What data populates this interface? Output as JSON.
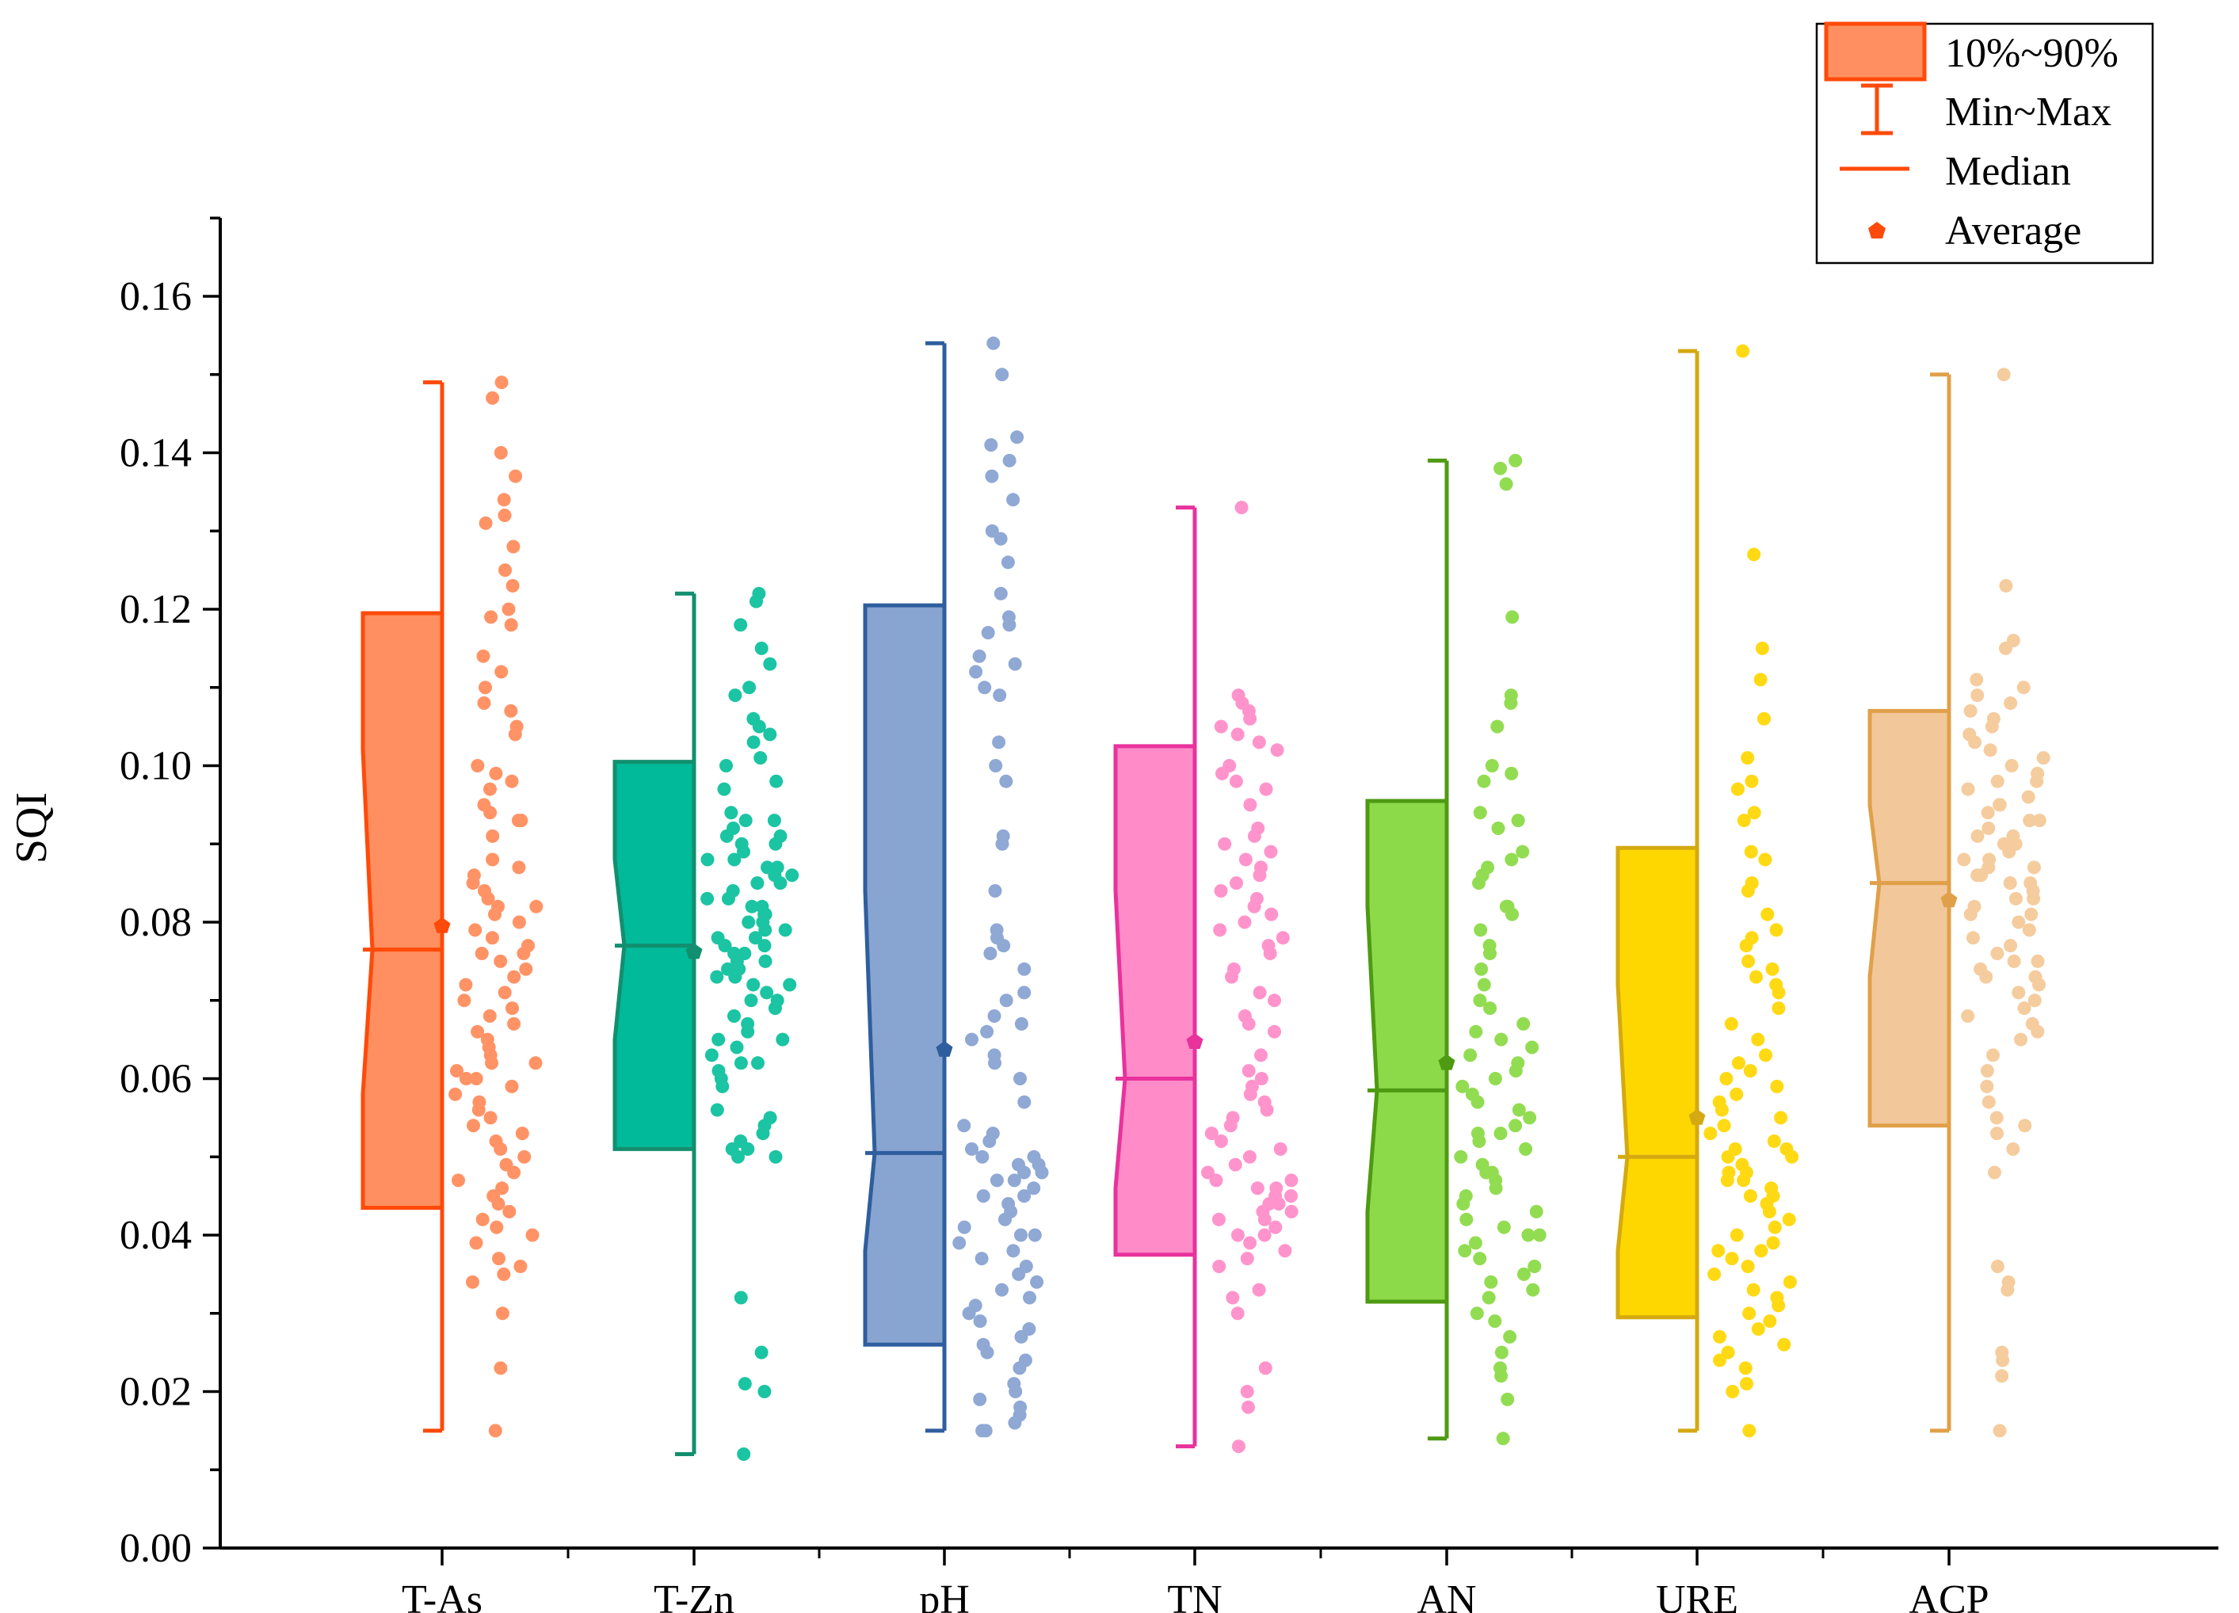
{
  "chart_data": {
    "type": "box-with-points",
    "xlabel": "",
    "ylabel": "SQI",
    "ylim": [
      0.0,
      0.17
    ],
    "yticks": [
      0.0,
      0.02,
      0.04,
      0.06,
      0.08,
      0.1,
      0.12,
      0.14,
      0.16
    ],
    "ytick_labels": [
      "0.00",
      "0.02",
      "0.04",
      "0.06",
      "0.08",
      "0.10",
      "0.12",
      "0.14",
      "0.16"
    ],
    "categories": [
      "T-As",
      "T-Zn",
      "pH",
      "TN",
      "AN",
      "URE",
      "ACP"
    ],
    "legend": {
      "position": "top-right",
      "entries": [
        {
          "key": "box",
          "label": "10%~90%"
        },
        {
          "key": "whisker",
          "label": "Min~Max"
        },
        {
          "key": "median",
          "label": "Median"
        },
        {
          "key": "mean",
          "label": "Average"
        }
      ],
      "color": "#FF4A0A",
      "fill": "#FF8F60"
    },
    "series": [
      {
        "name": "T-As",
        "edge": "#FF4A0A",
        "fill": "#FF8F60",
        "point": "#FF9366",
        "min": 0.015,
        "p10": 0.0435,
        "median": 0.0765,
        "p90": 0.1195,
        "max": 0.149,
        "mean": 0.0795,
        "notch_low": 0.058,
        "notch_high": 0.102,
        "points": [
          0.149,
          0.147,
          0.14,
          0.137,
          0.134,
          0.132,
          0.131,
          0.128,
          0.125,
          0.123,
          0.12,
          0.119,
          0.118,
          0.114,
          0.112,
          0.11,
          0.108,
          0.107,
          0.105,
          0.104,
          0.1,
          0.099,
          0.098,
          0.097,
          0.095,
          0.094,
          0.093,
          0.093,
          0.091,
          0.088,
          0.087,
          0.086,
          0.085,
          0.084,
          0.083,
          0.082,
          0.082,
          0.081,
          0.08,
          0.079,
          0.078,
          0.077,
          0.076,
          0.076,
          0.075,
          0.074,
          0.073,
          0.072,
          0.071,
          0.07,
          0.069,
          0.068,
          0.067,
          0.066,
          0.065,
          0.064,
          0.063,
          0.062,
          0.062,
          0.061,
          0.06,
          0.06,
          0.059,
          0.058,
          0.057,
          0.056,
          0.055,
          0.054,
          0.053,
          0.052,
          0.051,
          0.05,
          0.049,
          0.048,
          0.047,
          0.046,
          0.045,
          0.044,
          0.043,
          0.042,
          0.041,
          0.04,
          0.039,
          0.037,
          0.036,
          0.035,
          0.034,
          0.03,
          0.023,
          0.015
        ]
      },
      {
        "name": "T-Zn",
        "edge": "#128F6E",
        "fill": "#00BA9A",
        "point": "#1BC4A2",
        "min": 0.012,
        "p10": 0.051,
        "median": 0.077,
        "p90": 0.1005,
        "max": 0.122,
        "mean": 0.0762,
        "notch_low": 0.065,
        "notch_high": 0.088,
        "points": [
          0.122,
          0.121,
          0.118,
          0.115,
          0.113,
          0.11,
          0.109,
          0.106,
          0.105,
          0.104,
          0.103,
          0.101,
          0.1,
          0.098,
          0.097,
          0.094,
          0.093,
          0.093,
          0.092,
          0.091,
          0.091,
          0.09,
          0.09,
          0.089,
          0.088,
          0.088,
          0.087,
          0.087,
          0.086,
          0.086,
          0.085,
          0.085,
          0.084,
          0.083,
          0.083,
          0.082,
          0.082,
          0.081,
          0.081,
          0.08,
          0.08,
          0.079,
          0.079,
          0.078,
          0.078,
          0.077,
          0.077,
          0.076,
          0.076,
          0.075,
          0.075,
          0.074,
          0.074,
          0.073,
          0.073,
          0.072,
          0.072,
          0.071,
          0.07,
          0.07,
          0.069,
          0.068,
          0.067,
          0.066,
          0.065,
          0.065,
          0.064,
          0.063,
          0.062,
          0.062,
          0.061,
          0.06,
          0.059,
          0.056,
          0.055,
          0.054,
          0.053,
          0.052,
          0.051,
          0.051,
          0.05,
          0.05,
          0.032,
          0.025,
          0.021,
          0.02,
          0.012
        ]
      },
      {
        "name": "pH",
        "edge": "#2E5E9E",
        "fill": "#88A4D0",
        "point": "#8FA8D4",
        "min": 0.015,
        "p10": 0.026,
        "median": 0.0505,
        "p90": 0.1205,
        "max": 0.154,
        "mean": 0.0637,
        "notch_low": 0.038,
        "notch_high": 0.084,
        "points": [
          0.154,
          0.15,
          0.142,
          0.141,
          0.139,
          0.137,
          0.134,
          0.13,
          0.129,
          0.126,
          0.122,
          0.119,
          0.118,
          0.117,
          0.114,
          0.113,
          0.112,
          0.11,
          0.109,
          0.103,
          0.1,
          0.098,
          0.091,
          0.09,
          0.084,
          0.079,
          0.078,
          0.077,
          0.076,
          0.074,
          0.071,
          0.07,
          0.068,
          0.067,
          0.066,
          0.065,
          0.063,
          0.062,
          0.06,
          0.057,
          0.054,
          0.053,
          0.052,
          0.051,
          0.05,
          0.05,
          0.049,
          0.049,
          0.048,
          0.048,
          0.047,
          0.047,
          0.046,
          0.045,
          0.045,
          0.044,
          0.043,
          0.042,
          0.041,
          0.04,
          0.04,
          0.039,
          0.038,
          0.037,
          0.036,
          0.035,
          0.034,
          0.033,
          0.032,
          0.031,
          0.03,
          0.029,
          0.028,
          0.027,
          0.026,
          0.025,
          0.024,
          0.023,
          0.021,
          0.02,
          0.019,
          0.018,
          0.017,
          0.016,
          0.015,
          0.015
        ]
      },
      {
        "name": "TN",
        "edge": "#E8329C",
        "fill": "#FF8BC8",
        "point": "#FF94CC",
        "min": 0.013,
        "p10": 0.0375,
        "median": 0.06,
        "p90": 0.1025,
        "max": 0.133,
        "mean": 0.0647,
        "notch_low": 0.046,
        "notch_high": 0.084,
        "points": [
          0.133,
          0.109,
          0.108,
          0.107,
          0.106,
          0.105,
          0.104,
          0.103,
          0.102,
          0.1,
          0.099,
          0.098,
          0.097,
          0.095,
          0.092,
          0.091,
          0.09,
          0.089,
          0.088,
          0.087,
          0.086,
          0.085,
          0.084,
          0.083,
          0.082,
          0.081,
          0.08,
          0.079,
          0.078,
          0.077,
          0.076,
          0.074,
          0.073,
          0.071,
          0.07,
          0.068,
          0.067,
          0.066,
          0.063,
          0.061,
          0.06,
          0.059,
          0.058,
          0.057,
          0.056,
          0.055,
          0.054,
          0.053,
          0.052,
          0.051,
          0.05,
          0.049,
          0.048,
          0.047,
          0.047,
          0.046,
          0.046,
          0.045,
          0.045,
          0.044,
          0.044,
          0.043,
          0.043,
          0.042,
          0.042,
          0.041,
          0.04,
          0.04,
          0.039,
          0.038,
          0.037,
          0.036,
          0.033,
          0.032,
          0.03,
          0.023,
          0.02,
          0.018,
          0.013
        ]
      },
      {
        "name": "AN",
        "edge": "#4E9A12",
        "fill": "#8CD94A",
        "point": "#92DC52",
        "min": 0.014,
        "p10": 0.0315,
        "median": 0.0585,
        "p90": 0.0955,
        "max": 0.139,
        "mean": 0.062,
        "notch_low": 0.043,
        "notch_high": 0.082,
        "points": [
          0.139,
          0.138,
          0.136,
          0.119,
          0.109,
          0.108,
          0.105,
          0.1,
          0.099,
          0.098,
          0.094,
          0.093,
          0.092,
          0.089,
          0.088,
          0.087,
          0.086,
          0.085,
          0.082,
          0.082,
          0.081,
          0.079,
          0.077,
          0.076,
          0.074,
          0.072,
          0.07,
          0.069,
          0.067,
          0.066,
          0.065,
          0.064,
          0.063,
          0.062,
          0.061,
          0.06,
          0.059,
          0.058,
          0.057,
          0.056,
          0.055,
          0.054,
          0.053,
          0.053,
          0.052,
          0.051,
          0.05,
          0.049,
          0.048,
          0.048,
          0.047,
          0.046,
          0.045,
          0.044,
          0.043,
          0.042,
          0.041,
          0.04,
          0.04,
          0.039,
          0.038,
          0.037,
          0.036,
          0.035,
          0.034,
          0.033,
          0.032,
          0.03,
          0.029,
          0.027,
          0.025,
          0.023,
          0.022,
          0.019,
          0.014
        ]
      },
      {
        "name": "URE",
        "edge": "#D4A911",
        "fill": "#FFD700",
        "point": "#FFD913",
        "min": 0.015,
        "p10": 0.0295,
        "median": 0.05,
        "p90": 0.0895,
        "max": 0.153,
        "mean": 0.055,
        "notch_low": 0.038,
        "notch_high": 0.072,
        "points": [
          0.153,
          0.127,
          0.115,
          0.111,
          0.106,
          0.101,
          0.098,
          0.097,
          0.094,
          0.093,
          0.089,
          0.088,
          0.085,
          0.084,
          0.081,
          0.079,
          0.078,
          0.077,
          0.075,
          0.074,
          0.073,
          0.072,
          0.071,
          0.069,
          0.067,
          0.065,
          0.063,
          0.062,
          0.061,
          0.06,
          0.059,
          0.058,
          0.057,
          0.056,
          0.055,
          0.054,
          0.053,
          0.052,
          0.051,
          0.051,
          0.05,
          0.05,
          0.049,
          0.048,
          0.048,
          0.047,
          0.047,
          0.046,
          0.045,
          0.045,
          0.044,
          0.043,
          0.042,
          0.041,
          0.04,
          0.039,
          0.038,
          0.038,
          0.037,
          0.036,
          0.035,
          0.034,
          0.033,
          0.032,
          0.031,
          0.03,
          0.029,
          0.028,
          0.027,
          0.026,
          0.025,
          0.024,
          0.023,
          0.021,
          0.02,
          0.015
        ]
      },
      {
        "name": "ACP",
        "edge": "#E0A04A",
        "fill": "#F2C79A",
        "point": "#F5CC9E",
        "min": 0.015,
        "p10": 0.054,
        "median": 0.085,
        "p90": 0.107,
        "max": 0.15,
        "mean": 0.0828,
        "notch_low": 0.073,
        "notch_high": 0.095,
        "points": [
          0.15,
          0.123,
          0.116,
          0.115,
          0.111,
          0.11,
          0.109,
          0.108,
          0.107,
          0.106,
          0.105,
          0.104,
          0.103,
          0.102,
          0.101,
          0.1,
          0.099,
          0.098,
          0.098,
          0.097,
          0.096,
          0.095,
          0.095,
          0.094,
          0.093,
          0.093,
          0.092,
          0.091,
          0.091,
          0.09,
          0.09,
          0.089,
          0.088,
          0.088,
          0.087,
          0.087,
          0.086,
          0.086,
          0.085,
          0.085,
          0.084,
          0.083,
          0.083,
          0.082,
          0.081,
          0.081,
          0.08,
          0.079,
          0.078,
          0.077,
          0.076,
          0.075,
          0.075,
          0.074,
          0.073,
          0.073,
          0.072,
          0.071,
          0.07,
          0.069,
          0.068,
          0.067,
          0.066,
          0.065,
          0.063,
          0.061,
          0.059,
          0.057,
          0.055,
          0.054,
          0.053,
          0.051,
          0.048,
          0.036,
          0.034,
          0.033,
          0.025,
          0.024,
          0.022,
          0.015
        ]
      }
    ]
  }
}
